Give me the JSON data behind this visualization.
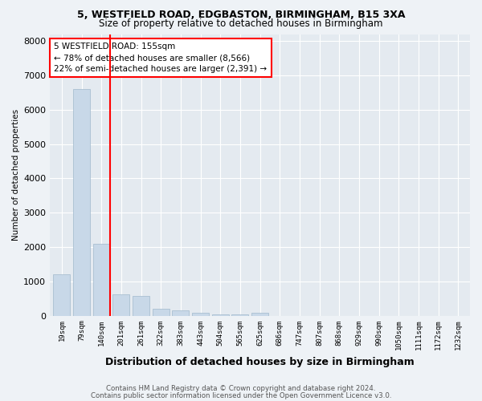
{
  "title1": "5, WESTFIELD ROAD, EDGBASTON, BIRMINGHAM, B15 3XA",
  "title2": "Size of property relative to detached houses in Birmingham",
  "xlabel": "Distribution of detached houses by size in Birmingham",
  "ylabel": "Number of detached properties",
  "categories": [
    "19sqm",
    "79sqm",
    "140sqm",
    "201sqm",
    "261sqm",
    "322sqm",
    "383sqm",
    "443sqm",
    "504sqm",
    "565sqm",
    "625sqm",
    "686sqm",
    "747sqm",
    "807sqm",
    "868sqm",
    "929sqm",
    "990sqm",
    "1050sqm",
    "1111sqm",
    "1172sqm",
    "1232sqm"
  ],
  "values": [
    1200,
    6600,
    2100,
    620,
    580,
    210,
    150,
    90,
    50,
    30,
    75,
    0,
    0,
    0,
    0,
    0,
    0,
    0,
    0,
    0,
    0
  ],
  "bar_color": "#c8d8e8",
  "bar_edgecolor": "#a0b8cc",
  "vline_index": 2,
  "vline_color": "red",
  "annotation_text": "5 WESTFIELD ROAD: 155sqm\n← 78% of detached houses are smaller (8,566)\n22% of semi-detached houses are larger (2,391) →",
  "ylim": [
    0,
    8200
  ],
  "yticks": [
    0,
    1000,
    2000,
    3000,
    4000,
    5000,
    6000,
    7000,
    8000
  ],
  "footer1": "Contains HM Land Registry data © Crown copyright and database right 2024.",
  "footer2": "Contains public sector information licensed under the Open Government Licence v3.0.",
  "bg_color": "#eef2f6",
  "plot_bg_color": "#e4eaf0",
  "grid_color": "#ffffff"
}
